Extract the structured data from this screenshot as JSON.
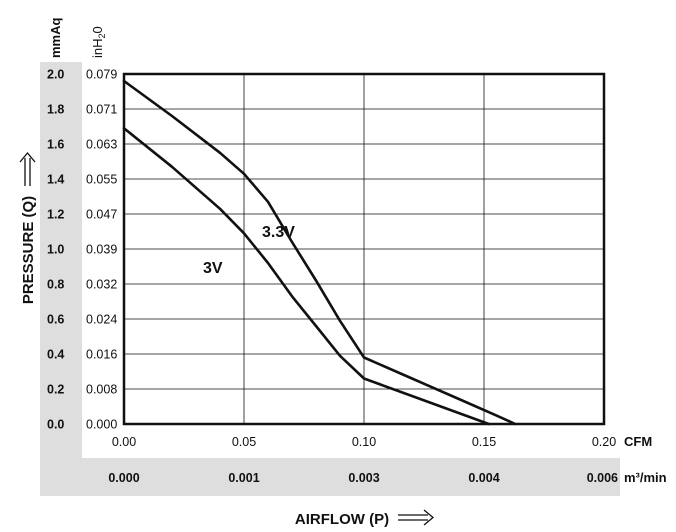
{
  "chart_data": {
    "type": "line",
    "title": "",
    "xlabel": "AIRFLOW (P)",
    "ylabel": "PRESSURE (Q)",
    "y_units": [
      "mmAq",
      "inH2O"
    ],
    "x_units": [
      "CFM",
      "m³/min"
    ],
    "xlim": [
      0,
      0.2
    ],
    "ylim": [
      0,
      2.0
    ],
    "grid": true,
    "x_ticks": [
      "0.00",
      "0.05",
      "0.10",
      "0.15",
      "0.20"
    ],
    "x_ticks_m3min": [
      "0.000",
      "0.001",
      "0.003",
      "0.004",
      "0.006"
    ],
    "y_ticks_mmaq": [
      "0.0",
      "0.2",
      "0.4",
      "0.6",
      "0.8",
      "1.0",
      "1.2",
      "1.4",
      "1.6",
      "1.8",
      "2.0"
    ],
    "y_ticks_inh2o": [
      "0.000",
      "0.008",
      "0.016",
      "0.024",
      "0.032",
      "0.039",
      "0.047",
      "0.055",
      "0.063",
      "0.071",
      "0.079"
    ],
    "series": [
      {
        "name": "3.3V",
        "x": [
          0.0,
          0.02,
          0.04,
          0.05,
          0.06,
          0.07,
          0.08,
          0.09,
          0.1,
          0.12,
          0.14,
          0.155,
          0.163
        ],
        "y": [
          1.96,
          1.76,
          1.55,
          1.43,
          1.27,
          1.04,
          0.82,
          0.59,
          0.38,
          0.26,
          0.14,
          0.05,
          0.0
        ]
      },
      {
        "name": "3V",
        "x": [
          0.0,
          0.02,
          0.04,
          0.05,
          0.06,
          0.07,
          0.08,
          0.09,
          0.1,
          0.12,
          0.14,
          0.152
        ],
        "y": [
          1.69,
          1.47,
          1.23,
          1.09,
          0.92,
          0.73,
          0.56,
          0.39,
          0.26,
          0.16,
          0.06,
          0.0
        ]
      }
    ]
  }
}
